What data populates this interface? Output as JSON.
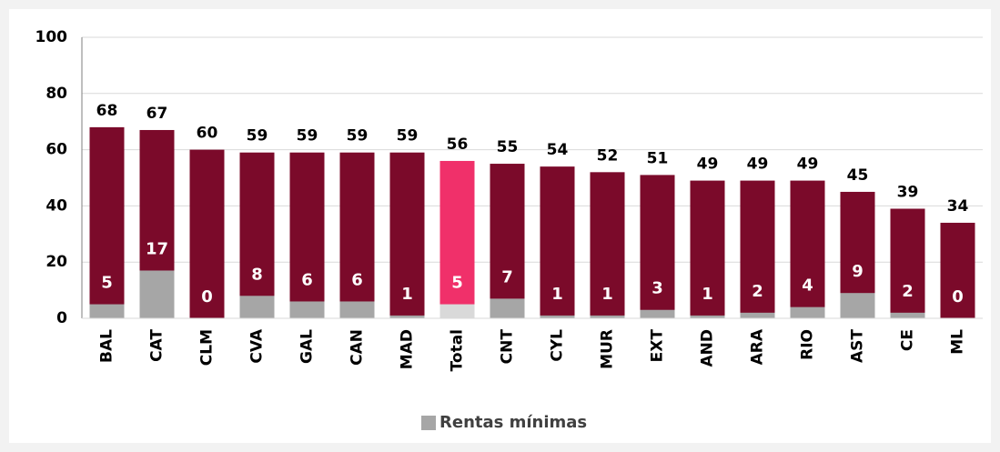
{
  "chart_data": {
    "type": "bar",
    "categories": [
      "BAL",
      "CAT",
      "CLM",
      "CVA",
      "GAL",
      "CAN",
      "MAD",
      "Total",
      "CNT",
      "CYL",
      "MUR",
      "EXT",
      "AND",
      "ARA",
      "RIO",
      "AST",
      "CE",
      "ML"
    ],
    "series": [
      {
        "color": "#7b0a2a",
        "colors": [
          "#7b0a2a",
          "#7b0a2a",
          "#7b0a2a",
          "#7b0a2a",
          "#7b0a2a",
          "#7b0a2a",
          "#7b0a2a",
          "#f0306a",
          "#7b0a2a",
          "#7b0a2a",
          "#7b0a2a",
          "#7b0a2a",
          "#7b0a2a",
          "#7b0a2a",
          "#7b0a2a",
          "#7b0a2a",
          "#7b0a2a",
          "#7b0a2a"
        ],
        "values": [
          68,
          67,
          60,
          59,
          59,
          59,
          59,
          56,
          55,
          54,
          52,
          51,
          49,
          49,
          49,
          45,
          39,
          34
        ]
      },
      {
        "name": "Rentas mínimas",
        "color": "#a6a6a6",
        "colors": [
          "#a6a6a6",
          "#a6a6a6",
          "#a6a6a6",
          "#a6a6a6",
          "#a6a6a6",
          "#a6a6a6",
          "#a6a6a6",
          "#d9d9d9",
          "#a6a6a6",
          "#a6a6a6",
          "#a6a6a6",
          "#a6a6a6",
          "#a6a6a6",
          "#a6a6a6",
          "#a6a6a6",
          "#a6a6a6",
          "#a6a6a6",
          "#a6a6a6"
        ],
        "values": [
          5,
          17,
          0,
          8,
          6,
          6,
          1,
          5,
          7,
          1,
          1,
          3,
          1,
          2,
          4,
          9,
          2,
          0
        ]
      }
    ],
    "ylim": [
      0,
      100
    ],
    "yticks": [
      0,
      20,
      40,
      60,
      80,
      100
    ],
    "grid": true,
    "legend": "bottom"
  }
}
